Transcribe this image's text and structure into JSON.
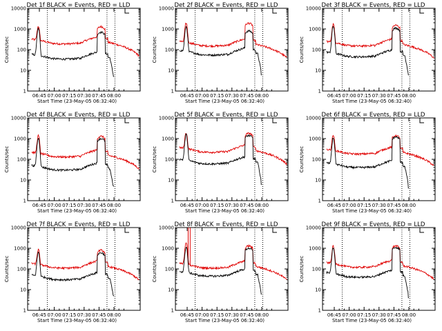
{
  "page": {
    "background": "#ffffff"
  },
  "colors": {
    "events": "#000000",
    "lld": "#e00000",
    "axis": "#000000"
  },
  "chart_data": [
    {
      "type": "line",
      "title": "Det 1f BLACK = Events, RED = LLD",
      "xlabel": "Start Time (23-May-05 06:32:40)",
      "ylabel": "Counts/sec",
      "xticks": [
        "06:45",
        "07:00",
        "07:15",
        "07:30",
        "07:45",
        "08:00"
      ],
      "yticks": [
        "1",
        "10",
        "100",
        "1000",
        "10000"
      ],
      "ylim": [
        1,
        10000
      ],
      "yscale": "log",
      "series": [
        {
          "name": "Events",
          "base": 35,
          "peak1": 1000,
          "peak2": 700,
          "end": 5
        },
        {
          "name": "LLD",
          "base": 190,
          "peak1": 1100,
          "peak2": 1300
        }
      ]
    },
    {
      "type": "line",
      "title": "Det 2f BLACK = Events, RED = LLD",
      "xlabel": "Start Time (23-May-05 06:32:40)",
      "ylabel": "Counts/sec",
      "xticks": [
        "06:45",
        "07:00",
        "07:15",
        "07:30",
        "07:45",
        "08:00"
      ],
      "yticks": [
        "1",
        "10",
        "100",
        "1000",
        "10000"
      ],
      "ylim": [
        1,
        10000
      ],
      "yscale": "log",
      "series": [
        {
          "name": "Events",
          "base": 55,
          "peak1": 1200,
          "peak2": 800,
          "end": 6
        },
        {
          "name": "LLD",
          "base": 150,
          "peak1": 1700,
          "peak2": 1900
        }
      ]
    },
    {
      "type": "line",
      "title": "Det 3f BLACK = Events, RED = LLD",
      "xlabel": "Start Time (23-May-05 06:32:40)",
      "ylabel": "Counts/sec",
      "xticks": [
        "06:45",
        "07:00",
        "07:15",
        "07:30",
        "07:45",
        "08:00"
      ],
      "yticks": [
        "1",
        "10",
        "100",
        "1000",
        "10000"
      ],
      "ylim": [
        1,
        10000
      ],
      "yscale": "log",
      "series": [
        {
          "name": "Events",
          "base": 45,
          "peak1": 1300,
          "peak2": 1100,
          "end": 6
        },
        {
          "name": "LLD",
          "base": 150,
          "peak1": 1500,
          "peak2": 1500
        }
      ]
    },
    {
      "type": "line",
      "title": "Det 4f BLACK = Events, RED = LLD",
      "xlabel": "Start Time (23-May-05 06:32:40)",
      "ylabel": "Counts/sec",
      "xticks": [
        "06:45",
        "07:00",
        "07:15",
        "07:30",
        "07:45",
        "08:00"
      ],
      "yticks": [
        "1",
        "10",
        "100",
        "1000",
        "10000"
      ],
      "ylim": [
        1,
        10000
      ],
      "yscale": "log",
      "series": [
        {
          "name": "Events",
          "base": 30,
          "peak1": 1000,
          "peak2": 1000,
          "end": 5
        },
        {
          "name": "LLD",
          "base": 130,
          "peak1": 1200,
          "peak2": 1300
        }
      ]
    },
    {
      "type": "line",
      "title": "Det 5f BLACK = Events, RED = LLD",
      "xlabel": "Start Time (23-May-05 06:32:40)",
      "ylabel": "Counts/sec",
      "xticks": [
        "06:45",
        "07:00",
        "07:15",
        "07:30",
        "07:45",
        "08:00"
      ],
      "yticks": [
        "1",
        "10",
        "100",
        "1000",
        "10000"
      ],
      "ylim": [
        1,
        10000
      ],
      "yscale": "log",
      "series": [
        {
          "name": "Events",
          "base": 60,
          "peak1": 1500,
          "peak2": 1400,
          "end": 6
        },
        {
          "name": "LLD",
          "base": 220,
          "peak1": 1600,
          "peak2": 1800
        }
      ]
    },
    {
      "type": "line",
      "title": "Det 6f BLACK = Events, RED = LLD",
      "xlabel": "Start Time (23-May-05 06:32:40)",
      "ylabel": "Counts/sec",
      "xticks": [
        "06:45",
        "07:00",
        "07:15",
        "07:30",
        "07:45",
        "08:00"
      ],
      "yticks": [
        "1",
        "10",
        "100",
        "1000",
        "10000"
      ],
      "ylim": [
        1,
        10000
      ],
      "yscale": "log",
      "series": [
        {
          "name": "Events",
          "base": 40,
          "peak1": 1000,
          "peak2": 1200,
          "end": 4
        },
        {
          "name": "LLD",
          "base": 180,
          "peak1": 1200,
          "peak2": 1400
        }
      ]
    },
    {
      "type": "line",
      "title": "Det 7f BLACK = Events, RED = LLD",
      "xlabel": "Start Time (23-May-05 06:32:40)",
      "ylabel": "Counts/sec",
      "xticks": [
        "06:45",
        "07:00",
        "07:15",
        "07:30",
        "07:45",
        "08:00"
      ],
      "yticks": [
        "1",
        "10",
        "100",
        "1000",
        "10000"
      ],
      "ylim": [
        1,
        10000
      ],
      "yscale": "log",
      "series": [
        {
          "name": "Events",
          "base": 30,
          "peak1": 600,
          "peak2": 600,
          "end": 5
        },
        {
          "name": "LLD",
          "base": 110,
          "peak1": 700,
          "peak2": 800
        }
      ]
    },
    {
      "type": "line",
      "title": "Det 8f BLACK = Events, RED = LLD",
      "xlabel": "Start Time (23-May-05 06:32:40)",
      "ylabel": "Counts/sec",
      "xticks": [
        "06:45",
        "07:00",
        "07:15",
        "07:30",
        "07:45",
        "08:00"
      ],
      "yticks": [
        "1",
        "10",
        "100",
        "1000",
        "10000"
      ],
      "ylim": [
        1,
        10000
      ],
      "yscale": "log",
      "series": [
        {
          "name": "Events",
          "base": 45,
          "peak1": 1100,
          "peak2": 1000,
          "end": 6
        },
        {
          "name": "LLD",
          "base": 110,
          "peak1": 1800,
          "peak2": 1300,
          "spike": 10000
        }
      ]
    },
    {
      "type": "line",
      "title": "Det 9f BLACK = Events, RED = LLD",
      "xlabel": "Start Time (23-May-05 06:32:40)",
      "ylabel": "Counts/sec",
      "xticks": [
        "06:45",
        "07:00",
        "07:15",
        "07:30",
        "07:45",
        "08:00"
      ],
      "yticks": [
        "1",
        "10",
        "100",
        "1000",
        "10000"
      ],
      "ylim": [
        1,
        10000
      ],
      "yscale": "log",
      "series": [
        {
          "name": "Events",
          "base": 40,
          "peak1": 1000,
          "peak2": 1100,
          "end": 4
        },
        {
          "name": "LLD",
          "base": 120,
          "peak1": 1100,
          "peak2": 1300
        }
      ]
    }
  ]
}
